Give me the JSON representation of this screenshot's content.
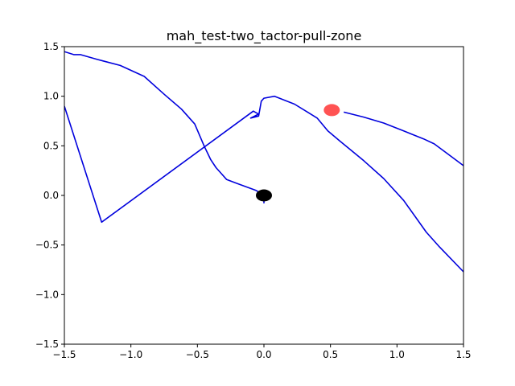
{
  "chart_data": {
    "type": "line",
    "title": "mah_test-two_tactor-pull-zone",
    "xlabel": "",
    "ylabel": "",
    "xlim": [
      -1.5,
      1.5
    ],
    "ylim": [
      -1.5,
      1.5
    ],
    "x_ticks": [
      -1.5,
      -1.0,
      -0.5,
      0.0,
      0.5,
      1.0,
      1.5
    ],
    "x_tick_labels": [
      "−1.5",
      "−1.0",
      "−0.5",
      "0.0",
      "0.5",
      "1.0",
      "1.5"
    ],
    "y_ticks": [
      1.5,
      1.0,
      0.5,
      0.0,
      -0.5,
      -1.0,
      -1.5
    ],
    "y_tick_labels": [
      "1.5",
      "1.0",
      "0.5",
      "0.0",
      "−0.5",
      "−1.0",
      "−1.5"
    ],
    "grid": false,
    "line_color": "#0000dd",
    "series": [
      {
        "x": [
          0.0,
          0.0,
          -0.02,
          -0.06,
          -0.12,
          -0.2,
          -0.28,
          -0.32,
          -0.36,
          -0.4,
          -0.45,
          -0.52,
          -0.62,
          -0.75,
          -0.9,
          -1.08,
          -1.25,
          -1.38,
          -1.43,
          -1.5
        ],
        "y": [
          -0.08,
          0.0,
          0.02,
          0.05,
          0.08,
          0.12,
          0.16,
          0.22,
          0.28,
          0.36,
          0.5,
          0.72,
          0.87,
          1.02,
          1.2,
          1.31,
          1.37,
          1.42,
          1.42,
          1.45
        ]
      },
      {
        "x": [
          -1.5,
          -1.22,
          -0.08,
          -0.04,
          -0.1,
          -0.04,
          -0.02,
          0.0,
          0.08,
          0.23,
          0.4,
          0.48,
          0.57,
          0.75,
          0.9,
          1.05,
          1.22,
          1.32,
          1.5
        ],
        "y": [
          0.9,
          -0.27,
          0.85,
          0.82,
          0.78,
          0.8,
          0.95,
          0.98,
          1.0,
          0.92,
          0.78,
          0.65,
          0.55,
          0.35,
          0.17,
          -0.05,
          -0.37,
          -0.52,
          -0.77
        ]
      },
      {
        "x": [
          0.6,
          0.75,
          0.9,
          1.05,
          1.2,
          1.28,
          1.35,
          1.42,
          1.5
        ],
        "y": [
          0.84,
          0.79,
          0.73,
          0.65,
          0.57,
          0.52,
          0.45,
          0.38,
          0.3
        ]
      }
    ],
    "markers": [
      {
        "x": 0.0,
        "y": 0.0,
        "color": "#000000"
      },
      {
        "x": 0.51,
        "y": 0.86,
        "color": "#ff4040"
      }
    ]
  }
}
